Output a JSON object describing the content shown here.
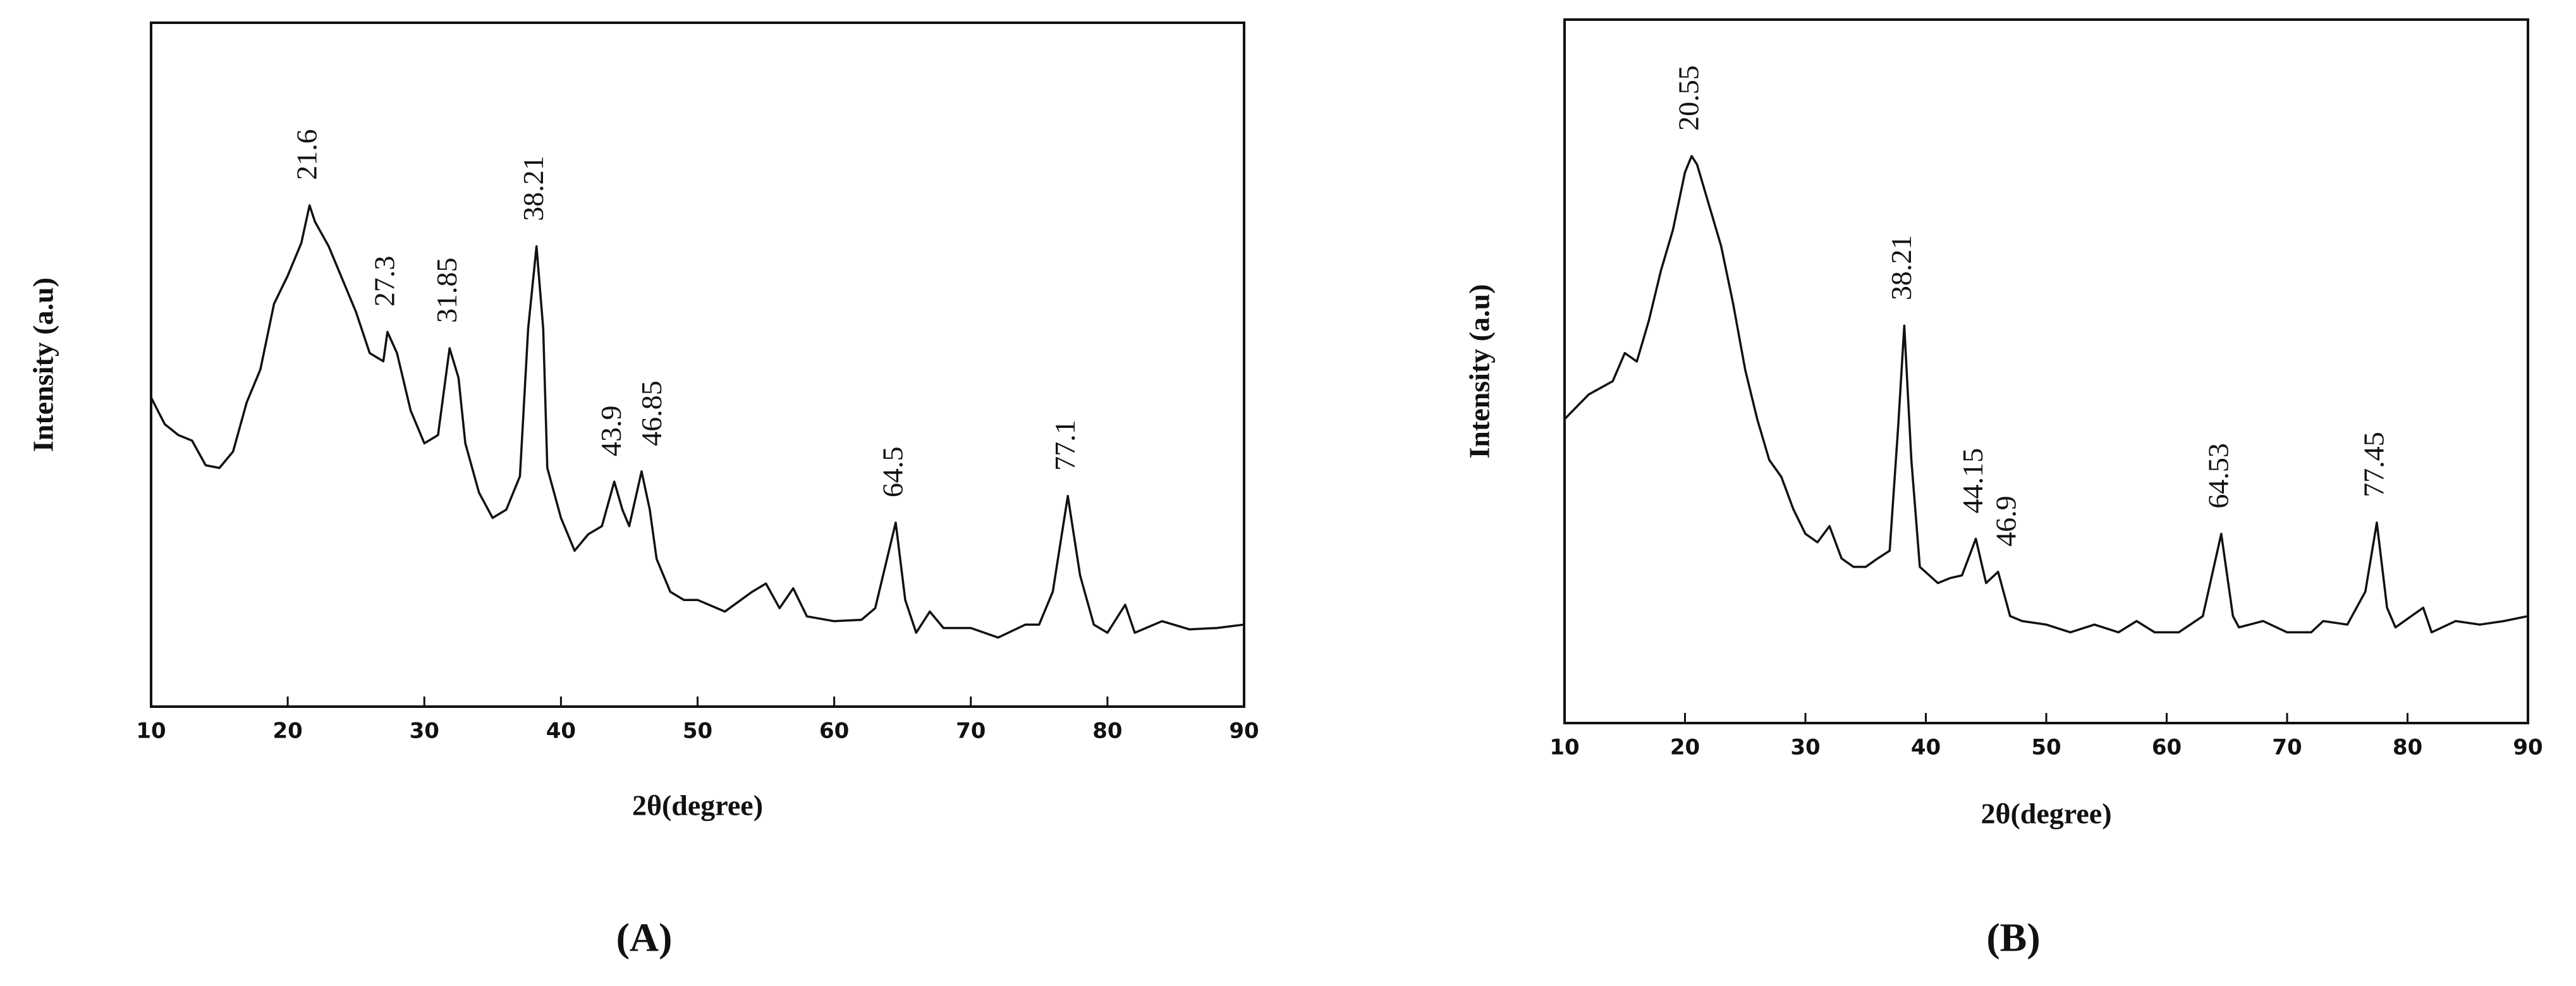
{
  "chart_data": [
    {
      "type": "line",
      "caption": "(A)",
      "xlabel": "2θ(degree)",
      "ylabel": "Intensity (a.u)",
      "color": "#111111",
      "xlim": [
        10,
        90
      ],
      "ylim": [
        0,
        100
      ],
      "xticks": [
        10,
        20,
        30,
        40,
        50,
        60,
        70,
        80,
        90
      ],
      "x": [
        10,
        11,
        12,
        13,
        14,
        15,
        16,
        17,
        18,
        19,
        20,
        21,
        21.6,
        22,
        23,
        24,
        25,
        26,
        27,
        27.3,
        28,
        29,
        30,
        31,
        31.85,
        32.5,
        33,
        34,
        35,
        36,
        37,
        37.6,
        38.21,
        38.7,
        39,
        40,
        41,
        42,
        43,
        43.9,
        44.5,
        45,
        45.9,
        46.5,
        47,
        48,
        49,
        50,
        52,
        54,
        55,
        56,
        57,
        58,
        60,
        62,
        63,
        64.5,
        65.2,
        66,
        67,
        68,
        70,
        72,
        74,
        75,
        76,
        77.1,
        78,
        79,
        80,
        81.3,
        82,
        84,
        86,
        88,
        90
      ],
      "values": [
        45.2,
        41.3,
        39.7,
        38.9,
        35.3,
        34.9,
        37.3,
        44.5,
        49.3,
        58.9,
        63.0,
        67.8,
        73.3,
        70.9,
        67.3,
        62.5,
        57.7,
        51.7,
        50.5,
        54.8,
        51.7,
        43.3,
        38.5,
        39.7,
        52.4,
        48.1,
        38.5,
        31.3,
        27.6,
        28.8,
        33.7,
        55.3,
        67.3,
        55.3,
        34.9,
        27.6,
        22.8,
        25.2,
        26.4,
        32.9,
        28.8,
        26.4,
        34.4,
        28.8,
        21.6,
        16.8,
        15.6,
        15.6,
        13.9,
        16.8,
        18.0,
        14.4,
        17.3,
        13.2,
        12.5,
        12.7,
        14.4,
        26.9,
        15.6,
        10.8,
        13.9,
        11.5,
        11.5,
        10.1,
        12.0,
        12.0,
        16.8,
        30.8,
        19.2,
        12.0,
        10.8,
        14.9,
        10.8,
        12.5,
        11.3,
        11.5,
        12.0
      ],
      "annotations": [
        {
          "text": "21.6",
          "x": 21.6,
          "y": 73.3
        },
        {
          "text": "27.3",
          "x": 27.3,
          "y": 54.8
        },
        {
          "text": "31.85",
          "x": 31.85,
          "y": 52.4
        },
        {
          "text": "38.21",
          "x": 38.21,
          "y": 67.3
        },
        {
          "text": "43.9",
          "x": 43.9,
          "y": 32.9
        },
        {
          "text": "46.85",
          "x": 46.85,
          "y": 34.4
        },
        {
          "text": "64.5",
          "x": 64.5,
          "y": 26.9
        },
        {
          "text": "77.1",
          "x": 77.1,
          "y": 30.8
        }
      ]
    },
    {
      "type": "line",
      "caption": "(B)",
      "xlabel": "2θ(degree)",
      "ylabel": "Intensity (a.u)",
      "color": "#111111",
      "xlim": [
        10,
        90
      ],
      "ylim": [
        0,
        100
      ],
      "xticks": [
        10,
        20,
        30,
        40,
        50,
        60,
        70,
        80,
        90
      ],
      "x": [
        10,
        12,
        14,
        15,
        16,
        17,
        18,
        19,
        20,
        20.55,
        21,
        22,
        23,
        24,
        25,
        26,
        27,
        28,
        29,
        30,
        31,
        32,
        33,
        34,
        35,
        36,
        37,
        37.7,
        38.21,
        38.8,
        39.5,
        41,
        42,
        43,
        44.15,
        45,
        46,
        47,
        48,
        50,
        52,
        54,
        56,
        57.5,
        59,
        61,
        63,
        64.53,
        65.5,
        66,
        68,
        70,
        72,
        73,
        75,
        76.5,
        77.45,
        78.3,
        79,
        81.3,
        82,
        84,
        86,
        88,
        90
      ],
      "values": [
        43.2,
        46.7,
        48.6,
        52.6,
        51.4,
        57.2,
        64.3,
        70.1,
        78.3,
        80.6,
        79.4,
        73.6,
        67.8,
        59.6,
        50.2,
        43.2,
        37.4,
        35.0,
        30.4,
        26.9,
        25.7,
        28.0,
        23.4,
        22.2,
        22.2,
        23.4,
        24.5,
        42.1,
        56.5,
        37.4,
        22.2,
        19.9,
        20.6,
        21.0,
        26.2,
        19.9,
        21.5,
        15.2,
        14.5,
        14.0,
        12.9,
        14.0,
        12.9,
        14.5,
        12.9,
        12.9,
        15.2,
        26.9,
        15.2,
        13.6,
        14.5,
        12.9,
        12.9,
        14.5,
        14.0,
        18.7,
        28.5,
        16.4,
        13.6,
        16.4,
        12.9,
        14.5,
        14.0,
        14.5,
        15.2
      ],
      "annotations": [
        {
          "text": "20.55",
          "x": 20.55,
          "y": 80.6
        },
        {
          "text": "38.21",
          "x": 38.21,
          "y": 56.5
        },
        {
          "text": "44.15",
          "x": 44.15,
          "y": 26.2
        },
        {
          "text": "46.9",
          "x": 46.9,
          "y": 21.5
        },
        {
          "text": "64.53",
          "x": 64.53,
          "y": 26.9
        },
        {
          "text": "77.45",
          "x": 77.45,
          "y": 28.5
        }
      ]
    }
  ]
}
